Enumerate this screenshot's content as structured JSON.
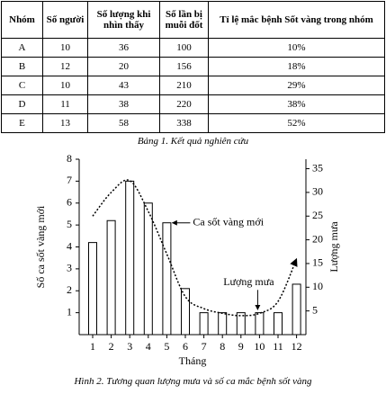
{
  "table": {
    "header": [
      "Nhóm",
      "Số người",
      "Số lượng khi nhìn thấy",
      "Số lần bị muỗi đốt",
      "Tỉ lệ mắc bệnh Sốt vàng trong nhóm"
    ],
    "rows": [
      [
        "A",
        "10",
        "36",
        "100",
        "10%"
      ],
      [
        "B",
        "12",
        "20",
        "156",
        "18%"
      ],
      [
        "C",
        "10",
        "43",
        "210",
        "29%"
      ],
      [
        "D",
        "11",
        "38",
        "220",
        "38%"
      ],
      [
        "E",
        "13",
        "58",
        "338",
        "52%"
      ]
    ]
  },
  "table_caption": "Bảng 1. Kết quả nghiên cứu",
  "chart_data": {
    "type": "bar-line",
    "categories": [
      "1",
      "2",
      "3",
      "4",
      "5",
      "6",
      "7",
      "8",
      "9",
      "10",
      "11",
      "12"
    ],
    "x_label": "Tháng",
    "y_label": "Số ca sốt vàng mới",
    "y2_label": "Lượng mưa",
    "series": [
      {
        "name": "Ca sốt vàng mới",
        "type": "bar",
        "color": "#000000",
        "values": [
          4.2,
          5.2,
          7.0,
          6.0,
          5.1,
          2.1,
          1,
          1,
          1,
          1,
          1,
          2.3
        ]
      },
      {
        "name": "Lượng mưa",
        "type": "line",
        "axis": "y2",
        "color": "#000000",
        "values": [
          25,
          30,
          32.5,
          26,
          17,
          8,
          5.5,
          4.5,
          4,
          4.5,
          7,
          16
        ]
      }
    ],
    "ylim": [
      0,
      8
    ],
    "yticks": [
      1,
      2,
      3,
      4,
      5,
      6,
      7,
      8
    ],
    "y2lim": [
      0,
      37
    ],
    "y2ticks": [
      5,
      10,
      15,
      20,
      25,
      30,
      35
    ]
  },
  "figure_caption": "Hình 2. Tương quan lượng mưa và số ca mắc bệnh sốt vàng"
}
